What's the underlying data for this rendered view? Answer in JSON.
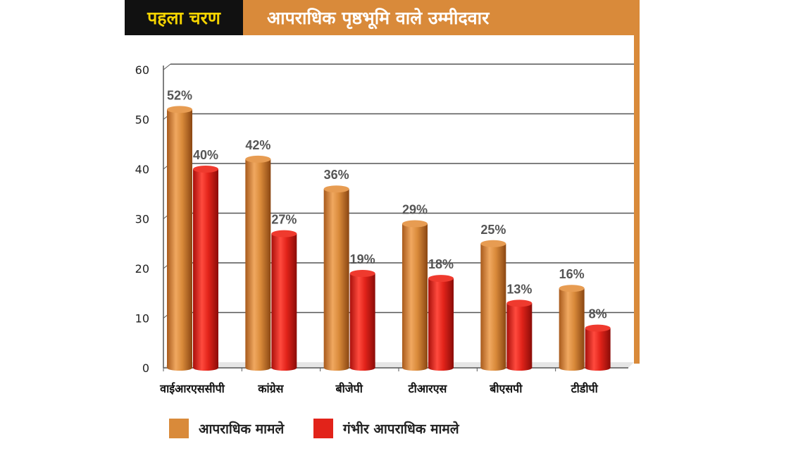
{
  "header": {
    "tag": "पहला चरण",
    "title": "आपराधिक पृष्ठभूमि वाले उम्मीदवार"
  },
  "colors": {
    "orange": "#d98a3a",
    "red": "#e2231a",
    "header_bg": "#d98a3a",
    "tag_bg": "#111111",
    "tag_text": "#f5d400"
  },
  "chart_data": {
    "type": "bar",
    "title": "आपराधिक पृष्ठभूमि वाले उम्मीदवार",
    "categories": [
      "वाईआरएससीपी",
      "कांग्रेस",
      "बीजेपी",
      "टीआरएस",
      "बीएसपी",
      "टीडीपी"
    ],
    "series": [
      {
        "name": "आपराधिक मामले",
        "color": "#d98a3a",
        "values": [
          52,
          42,
          36,
          29,
          25,
          16
        ],
        "labels": [
          "52%",
          "42%",
          "36%",
          "29%",
          "25%",
          "16%"
        ]
      },
      {
        "name": "गंभीर आपराधिक मामले",
        "color": "#e2231a",
        "values": [
          40,
          27,
          19,
          18,
          13,
          8
        ],
        "labels": [
          "40%",
          "27%",
          "19%",
          "18%",
          "13%",
          "8%"
        ]
      }
    ],
    "y_ticks": [
      "0",
      "10",
      "20",
      "30",
      "40",
      "50",
      "60"
    ],
    "ylim": [
      0,
      60
    ],
    "grid": true,
    "legend_position": "bottom-left"
  }
}
